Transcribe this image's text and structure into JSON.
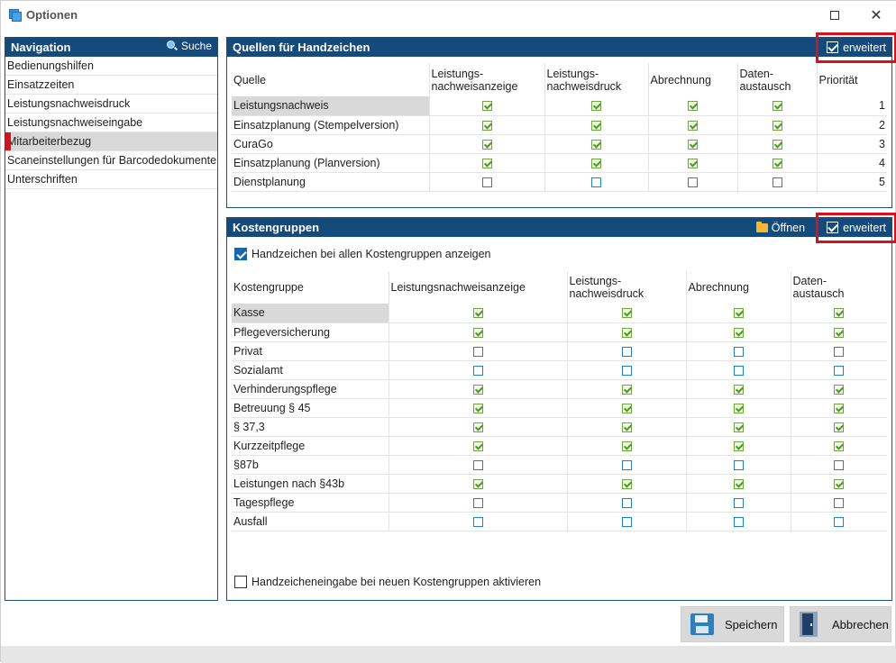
{
  "window": {
    "title": "Optionen"
  },
  "nav": {
    "header": "Navigation",
    "search_label": "Suche",
    "items": [
      {
        "label": "Bedienungshilfen",
        "selected": false
      },
      {
        "label": "Einsatzzeiten",
        "selected": false
      },
      {
        "label": "Leistungsnachweisdruck",
        "selected": false
      },
      {
        "label": "Leistungsnachweiseingabe",
        "selected": false
      },
      {
        "label": "Mitarbeiterbezug",
        "selected": true
      },
      {
        "label": "Scaneinstellungen für Barcodedokumente",
        "selected": false
      },
      {
        "label": "Unterschriften",
        "selected": false
      }
    ]
  },
  "sources": {
    "header": "Quellen für Handzeichen",
    "erweitert_label": "erweitert",
    "erweitert_checked": true,
    "columns": [
      "Quelle",
      "Leistungs-\nnachweisanzeige",
      "Leistungs-\nnachweisdruck",
      "Abrechnung",
      "Daten-\naustausch",
      "Priorität"
    ],
    "rows": [
      {
        "name": "Leistungsnachweis",
        "checks": [
          true,
          true,
          true,
          true
        ],
        "priority": "1"
      },
      {
        "name": "Einsatzplanung (Stempelversion)",
        "checks": [
          true,
          true,
          true,
          true
        ],
        "priority": "2"
      },
      {
        "name": "CuraGo",
        "checks": [
          true,
          true,
          true,
          true
        ],
        "priority": "3"
      },
      {
        "name": "Einsatzplanung (Planversion)",
        "checks": [
          true,
          true,
          true,
          true
        ],
        "priority": "4"
      },
      {
        "name": "Dienstplanung",
        "checks": [
          false,
          false,
          false,
          false
        ],
        "priority": "5"
      }
    ]
  },
  "cost_groups": {
    "header": "Kostengruppen",
    "open_label": "Öffnen",
    "erweitert_label": "erweitert",
    "erweitert_checked": true,
    "show_all_label": "Handzeichen bei allen Kostengruppen anzeigen",
    "show_all_checked": true,
    "columns": [
      "Kostengruppe",
      "Leistungsnachweisanzeige",
      "Leistungs-\nnachweisdruck",
      "Abrechnung",
      "Daten-\naustausch"
    ],
    "rows": [
      {
        "name": "Kasse",
        "checks": [
          true,
          true,
          true,
          true
        ]
      },
      {
        "name": "Pflegeversicherung",
        "checks": [
          true,
          true,
          true,
          true
        ]
      },
      {
        "name": "Privat",
        "checks": [
          false,
          false,
          false,
          false
        ]
      },
      {
        "name": "Sozialamt",
        "checks": [
          false,
          false,
          false,
          false
        ]
      },
      {
        "name": "Verhinderungspflege",
        "checks": [
          true,
          true,
          true,
          true
        ]
      },
      {
        "name": "Betreuung § 45",
        "checks": [
          true,
          true,
          true,
          true
        ]
      },
      {
        "name": "§ 37,3",
        "checks": [
          true,
          true,
          true,
          true
        ]
      },
      {
        "name": "Kurzzeitpflege",
        "checks": [
          true,
          true,
          true,
          true
        ]
      },
      {
        "name": "§87b",
        "checks": [
          false,
          false,
          false,
          false
        ]
      },
      {
        "name": "Leistungen nach §43b",
        "checks": [
          true,
          true,
          true,
          true
        ]
      },
      {
        "name": "Tagespflege",
        "checks": [
          false,
          false,
          false,
          false
        ]
      },
      {
        "name": "Ausfall",
        "checks": [
          false,
          false,
          false,
          false
        ]
      }
    ],
    "new_groups_label": "Handzeicheneingabe bei neuen Kostengruppen aktivieren",
    "new_groups_checked": false
  },
  "buttons": {
    "save": "Speichern",
    "cancel": "Abbrechen"
  },
  "colors": {
    "header_bg": "#154a7c",
    "highlight": "#d9111e",
    "check_green": "#4f9a22",
    "check_blue": "#1e82c8"
  }
}
